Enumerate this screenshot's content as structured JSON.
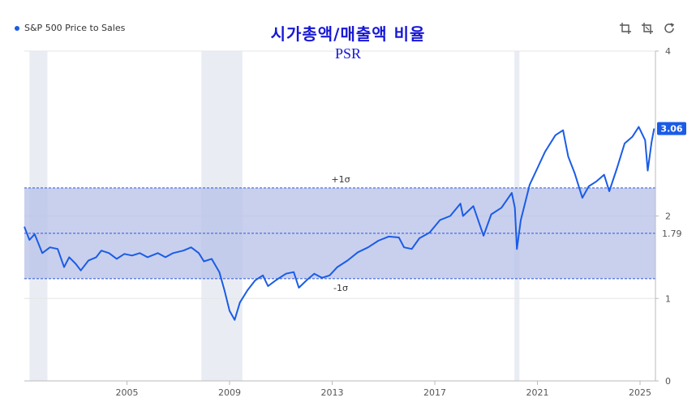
{
  "legend": {
    "label": "S&P 500 Price to Sales"
  },
  "title": "시가총액/매출액 비율",
  "subtitle": "PSR",
  "toolbar": {
    "icons": [
      "crop-icon",
      "crop-reset-icon",
      "refresh-icon"
    ]
  },
  "colors": {
    "line": "#1a5ce6",
    "band": "#b7c0e8",
    "recession": "#e9edf3",
    "title": "#1717d6"
  },
  "chart_data": {
    "type": "line",
    "series": [
      {
        "name": "S&P 500 Price to Sales",
        "points": [
          [
            2001.0,
            1.87
          ],
          [
            2001.2,
            1.71
          ],
          [
            2001.4,
            1.78
          ],
          [
            2001.7,
            1.55
          ],
          [
            2002.0,
            1.62
          ],
          [
            2002.3,
            1.6
          ],
          [
            2002.55,
            1.38
          ],
          [
            2002.75,
            1.5
          ],
          [
            2003.0,
            1.42
          ],
          [
            2003.2,
            1.34
          ],
          [
            2003.5,
            1.46
          ],
          [
            2003.8,
            1.5
          ],
          [
            2004.0,
            1.58
          ],
          [
            2004.3,
            1.55
          ],
          [
            2004.6,
            1.48
          ],
          [
            2004.9,
            1.54
          ],
          [
            2005.2,
            1.52
          ],
          [
            2005.5,
            1.55
          ],
          [
            2005.8,
            1.5
          ],
          [
            2006.2,
            1.55
          ],
          [
            2006.5,
            1.5
          ],
          [
            2006.8,
            1.55
          ],
          [
            2007.2,
            1.58
          ],
          [
            2007.5,
            1.62
          ],
          [
            2007.8,
            1.55
          ],
          [
            2008.0,
            1.45
          ],
          [
            2008.3,
            1.48
          ],
          [
            2008.6,
            1.32
          ],
          [
            2008.8,
            1.1
          ],
          [
            2009.0,
            0.85
          ],
          [
            2009.2,
            0.74
          ],
          [
            2009.4,
            0.95
          ],
          [
            2009.7,
            1.1
          ],
          [
            2010.0,
            1.22
          ],
          [
            2010.3,
            1.28
          ],
          [
            2010.5,
            1.15
          ],
          [
            2010.8,
            1.22
          ],
          [
            2011.2,
            1.3
          ],
          [
            2011.5,
            1.32
          ],
          [
            2011.7,
            1.13
          ],
          [
            2012.0,
            1.22
          ],
          [
            2012.3,
            1.3
          ],
          [
            2012.6,
            1.25
          ],
          [
            2012.9,
            1.28
          ],
          [
            2013.2,
            1.38
          ],
          [
            2013.6,
            1.46
          ],
          [
            2014.0,
            1.56
          ],
          [
            2014.4,
            1.62
          ],
          [
            2014.8,
            1.7
          ],
          [
            2015.2,
            1.75
          ],
          [
            2015.6,
            1.74
          ],
          [
            2015.8,
            1.62
          ],
          [
            2016.1,
            1.6
          ],
          [
            2016.4,
            1.73
          ],
          [
            2016.8,
            1.8
          ],
          [
            2017.2,
            1.95
          ],
          [
            2017.6,
            2.0
          ],
          [
            2018.0,
            2.15
          ],
          [
            2018.1,
            2.0
          ],
          [
            2018.5,
            2.12
          ],
          [
            2018.9,
            1.76
          ],
          [
            2019.2,
            2.02
          ],
          [
            2019.6,
            2.1
          ],
          [
            2020.0,
            2.28
          ],
          [
            2020.12,
            2.1
          ],
          [
            2020.2,
            1.6
          ],
          [
            2020.35,
            1.95
          ],
          [
            2020.7,
            2.38
          ],
          [
            2021.0,
            2.58
          ],
          [
            2021.3,
            2.78
          ],
          [
            2021.7,
            2.98
          ],
          [
            2022.0,
            3.04
          ],
          [
            2022.2,
            2.72
          ],
          [
            2022.45,
            2.52
          ],
          [
            2022.75,
            2.22
          ],
          [
            2023.0,
            2.36
          ],
          [
            2023.3,
            2.42
          ],
          [
            2023.6,
            2.5
          ],
          [
            2023.8,
            2.3
          ],
          [
            2024.1,
            2.58
          ],
          [
            2024.4,
            2.88
          ],
          [
            2024.7,
            2.96
          ],
          [
            2024.95,
            3.08
          ],
          [
            2025.2,
            2.92
          ],
          [
            2025.3,
            2.55
          ],
          [
            2025.45,
            2.9
          ],
          [
            2025.55,
            3.06
          ]
        ]
      }
    ],
    "mean": {
      "value": 1.79,
      "label": "1.79"
    },
    "band": {
      "upper": 2.34,
      "lower": 1.24,
      "upper_label": "+1σ",
      "lower_label": "-1σ"
    },
    "recessions": [
      [
        2001.2,
        2001.9
      ],
      [
        2007.9,
        2009.5
      ],
      [
        2020.1,
        2020.3
      ]
    ],
    "x_ticks": [
      "2005",
      "2009",
      "2013",
      "2017",
      "2021",
      "2025"
    ],
    "x_tick_values": [
      2005,
      2009,
      2013,
      2017,
      2021,
      2025
    ],
    "x_range": [
      2001.0,
      2025.6
    ],
    "y_ticks": [
      "0",
      "1",
      "2",
      "4"
    ],
    "y_tick_values": [
      0,
      1,
      2,
      4
    ],
    "ylim": [
      0,
      4
    ],
    "last_value_label": "3.06",
    "last_value": 3.06,
    "grid": "horizontal",
    "legend_position": "top-left"
  }
}
